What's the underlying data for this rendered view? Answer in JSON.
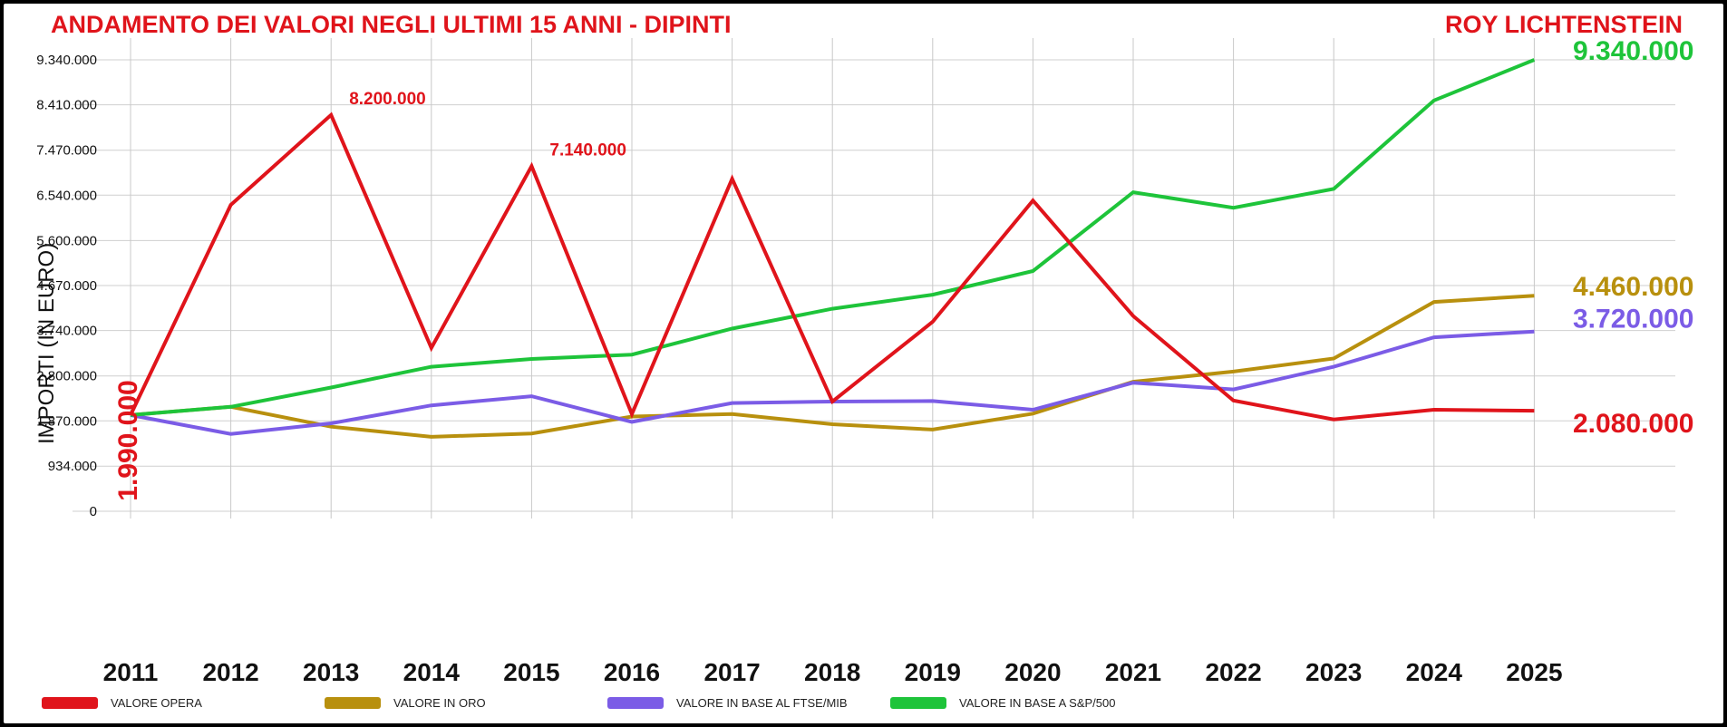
{
  "header": {
    "title": "ANDAMENTO DEI VALORI NEGLI ULTIMI 15 ANNI - DIPINTI",
    "artist": "ROY LICHTENSTEIN"
  },
  "chart_data": {
    "type": "line",
    "ylabel": "IMPORTI (IN EURO)",
    "ylim": [
      0,
      9340000
    ],
    "yticks": [
      "0",
      "934.000",
      "1.870.000",
      "2.800.000",
      "3.740.000",
      "4.670.000",
      "5.600.000",
      "6.540.000",
      "7.470.000",
      "8.410.000",
      "9.340.000"
    ],
    "ytick_values": [
      0,
      934000,
      1870000,
      2800000,
      3740000,
      4670000,
      5600000,
      6540000,
      7470000,
      8410000,
      9340000
    ],
    "categories": [
      "2011",
      "2012",
      "2013",
      "2014",
      "2015",
      "2016",
      "2017",
      "2018",
      "2019",
      "2020",
      "2021",
      "2022",
      "2023",
      "2024",
      "2025"
    ],
    "series": [
      {
        "name": "VALORE OPERA",
        "color": "#e0141b",
        "values": [
          1990000,
          6340000,
          8200000,
          3380000,
          7140000,
          2010000,
          6880000,
          2270000,
          3920000,
          6430000,
          4040000,
          2290000,
          1900000,
          2100000,
          2080000
        ],
        "start_label": "1.990.000",
        "end_label": "2.080.000"
      },
      {
        "name": "VALORE IN ORO",
        "color": "#b8900e",
        "values": [
          1990000,
          2160000,
          1750000,
          1540000,
          1610000,
          1960000,
          2010000,
          1800000,
          1690000,
          2020000,
          2680000,
          2890000,
          3160000,
          4330000,
          4460000
        ],
        "end_label": "4.460.000"
      },
      {
        "name": "VALORE IN BASE AL FTSE/MIB",
        "color": "#7b5ce6",
        "values": [
          1990000,
          1600000,
          1820000,
          2190000,
          2380000,
          1850000,
          2240000,
          2270000,
          2280000,
          2100000,
          2660000,
          2520000,
          2990000,
          3600000,
          3720000
        ],
        "end_label": "3.720.000"
      },
      {
        "name": "VALORE IN BASE A S&P/500",
        "color": "#1ec43a",
        "values": [
          1990000,
          2160000,
          2560000,
          2990000,
          3150000,
          3240000,
          3780000,
          4190000,
          4480000,
          4970000,
          6600000,
          6280000,
          6670000,
          8500000,
          9340000
        ],
        "end_label": "9.340.000"
      }
    ],
    "annotations": [
      {
        "series": 0,
        "index": 2,
        "text": "8.200.000"
      },
      {
        "series": 0,
        "index": 4,
        "text": "7.140.000"
      }
    ],
    "grid": true,
    "legend_position": "bottom"
  }
}
